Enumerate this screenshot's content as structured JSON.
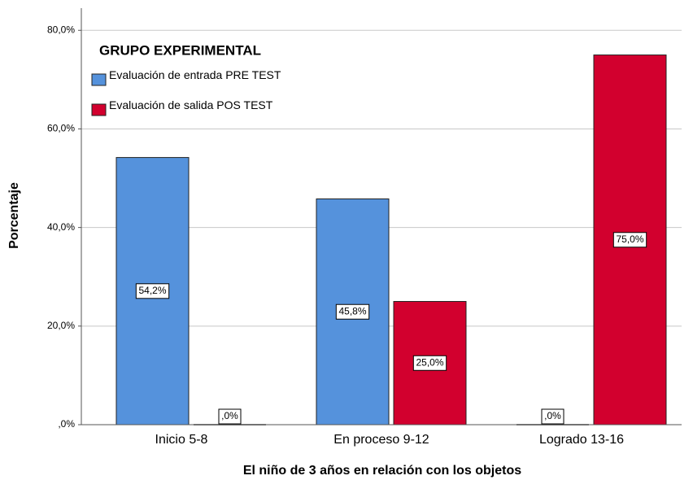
{
  "chart_data": {
    "type": "bar",
    "y_label": "Porcentaje",
    "x_label": "El niño de 3 años en relación con los objetos",
    "legend_title": "GRUPO EXPERIMENTAL",
    "categories": [
      "Inicio 5-8",
      "En proceso 9-12",
      "Logrado 13-16"
    ],
    "series": [
      {
        "name": "Evaluación de entrada PRE TEST",
        "color": "#5592dc",
        "values": [
          54.2,
          45.8,
          0
        ],
        "value_labels": [
          "54,2%",
          "45,8%",
          ",0%"
        ]
      },
      {
        "name": "Evaluación de salida POS TEST",
        "color": "#d2002e",
        "values": [
          0,
          25,
          75
        ],
        "value_labels": [
          ",0%",
          "25,0%",
          "75,0%"
        ]
      }
    ],
    "ylim": [
      0,
      84.5
    ],
    "yticks": [
      {
        "value": 0,
        "label": ",0%"
      },
      {
        "value": 20,
        "label": "20,0%"
      },
      {
        "value": 40,
        "label": "40,0%"
      },
      {
        "value": 60,
        "label": "60,0%"
      },
      {
        "value": 80,
        "label": "80,0%"
      }
    ],
    "grid": true,
    "legend": "upper left"
  }
}
